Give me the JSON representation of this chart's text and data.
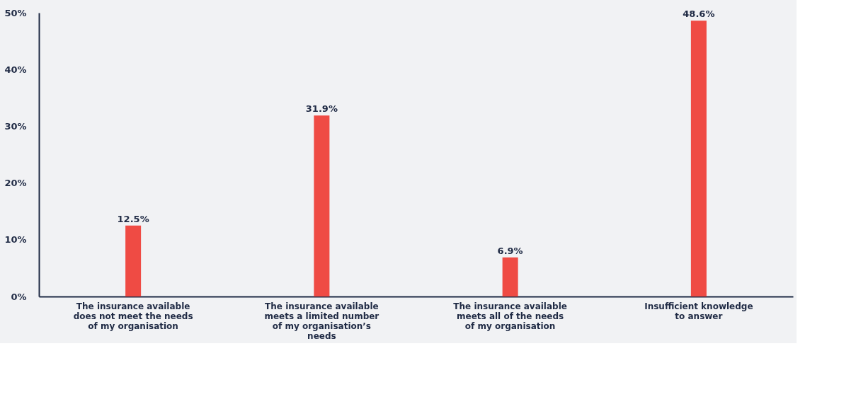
{
  "chart_data": {
    "type": "bar",
    "categories": [
      "The insurance available does not meet the needs of my organisation",
      "The insurance available meets a limited number of my organisation’s needs",
      "The insurance available meets all of the needs of my organisation",
      "Insufficient knowledge to answer"
    ],
    "values": [
      12.5,
      31.9,
      6.9,
      48.6
    ],
    "value_labels": [
      "12.5%",
      "31.9%",
      "6.9%",
      "48.6%"
    ],
    "color": "#ef4b44",
    "ylim": [
      0,
      50
    ],
    "yticks": [
      {
        "value": 0,
        "label": "0%"
      },
      {
        "value": 10,
        "label": "10%"
      },
      {
        "value": 20,
        "label": "20%"
      },
      {
        "value": 30,
        "label": "30%"
      },
      {
        "value": 40,
        "label": "40%"
      },
      {
        "value": 50,
        "label": "50%"
      }
    ],
    "grid": false
  }
}
